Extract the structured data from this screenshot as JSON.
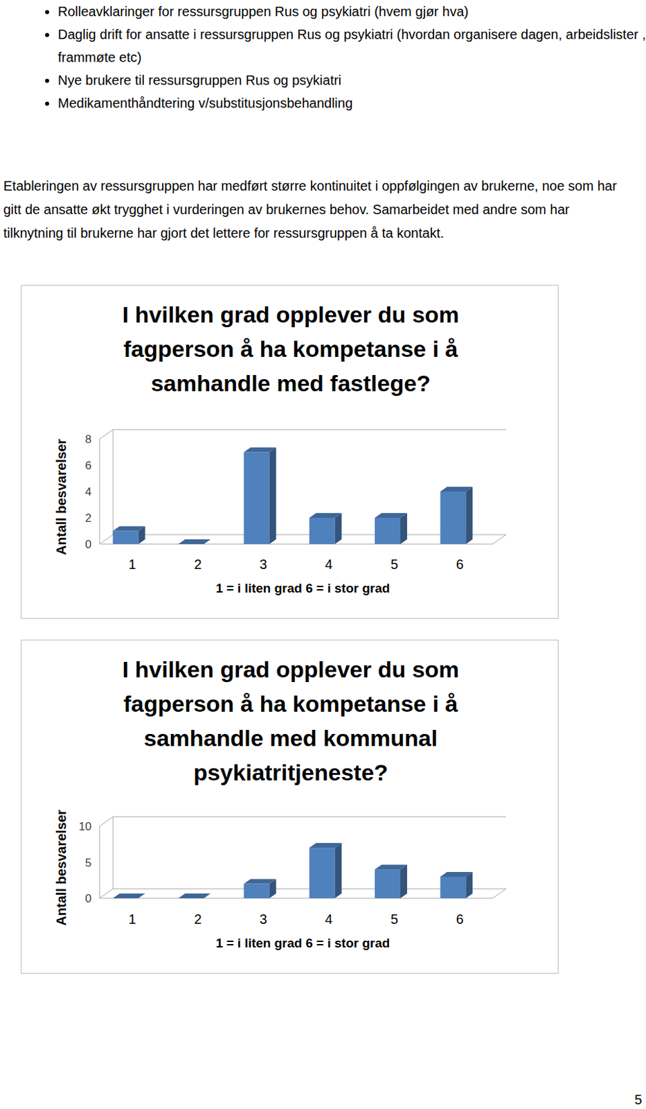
{
  "bullets": [
    "Rolleavklaringer for ressursgruppen Rus og psykiatri (hvem gjør hva)",
    "Daglig drift for ansatte i ressursgruppen Rus og psykiatri (hvordan organisere dagen, arbeidslister , frammøte etc)",
    "Nye brukere til ressursgruppen Rus og psykiatri",
    "Medikamenthåndtering  v/substitusjonsbehandling"
  ],
  "paragraph": "Etableringen av ressursgruppen har medført større kontinuitet i oppfølgingen av brukerne, noe som har gitt de ansatte økt trygghet i vurderingen av brukernes behov. Samarbeidet med andre som har tilknytning til brukerne har gjort det lettere for ressursgruppen å ta kontakt.",
  "chart_data": [
    {
      "type": "bar",
      "title": "I hvilken grad opplever du som fagperson å ha kompetanse i å samhandle med fastlege?",
      "x_label": "1 = i liten grad 6 = i stor grad",
      "y_label": "Antall besvarelser",
      "categories": [
        "1",
        "2",
        "3",
        "4",
        "5",
        "6"
      ],
      "values": [
        1,
        0,
        7,
        2,
        2,
        4
      ],
      "color": "#4f81bd",
      "ylim": [
        0,
        8
      ],
      "yticks": [
        0,
        2,
        4,
        6,
        8
      ],
      "grid": false
    },
    {
      "type": "bar",
      "title": "I hvilken grad opplever du som fagperson å ha kompetanse i å samhandle med kommunal psykiatritjeneste?",
      "x_label": "1 = i liten grad 6 = i stor grad",
      "y_label": "Antall besvarelser",
      "categories": [
        "1",
        "2",
        "3",
        "4",
        "5",
        "6"
      ],
      "values": [
        0,
        0,
        2,
        7,
        4,
        3
      ],
      "color": "#4f81bd",
      "ylim": [
        0,
        10
      ],
      "yticks": [
        0,
        5,
        10
      ],
      "grid": false
    }
  ],
  "page_number": "5"
}
